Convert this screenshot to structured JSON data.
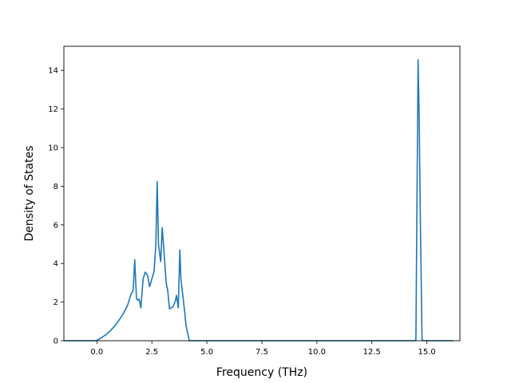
{
  "chart_data": {
    "type": "line",
    "title": "",
    "xlabel": "Frequency (THz)",
    "ylabel": "Density of States",
    "xlim": [
      -1.5,
      16.5
    ],
    "ylim": [
      0,
      15.25
    ],
    "grid": false,
    "legend": "none",
    "x_ticks": [
      0.0,
      2.5,
      5.0,
      7.5,
      10.0,
      12.5,
      15.0
    ],
    "x_tick_labels": [
      "0.0",
      "2.5",
      "5.0",
      "7.5",
      "10.0",
      "12.5",
      "15.0"
    ],
    "y_ticks": [
      0,
      2,
      4,
      6,
      8,
      10,
      12,
      14
    ],
    "y_tick_labels": [
      "0",
      "2",
      "4",
      "6",
      "8",
      "10",
      "12",
      "14"
    ],
    "color": "#1f77b4",
    "series": [
      {
        "x": [
          -1.5,
          -0.1,
          0.0,
          0.2,
          0.4,
          0.6,
          0.8,
          1.0,
          1.2,
          1.4,
          1.55,
          1.65,
          1.72,
          1.8,
          1.85,
          1.92,
          2.0,
          2.1,
          2.2,
          2.3,
          2.4,
          2.5,
          2.6,
          2.68,
          2.74,
          2.8,
          2.9,
          2.97,
          3.05,
          3.15,
          3.22,
          3.3,
          3.45,
          3.55,
          3.62,
          3.7,
          3.77,
          3.82,
          3.9,
          4.0,
          4.05,
          4.2,
          5.0,
          10.0,
          14.45,
          14.5,
          14.6,
          14.65,
          14.7,
          14.78,
          14.85,
          15.0,
          16.2
        ],
        "y": [
          0,
          0,
          0.02,
          0.15,
          0.3,
          0.5,
          0.75,
          1.05,
          1.4,
          1.85,
          2.4,
          2.6,
          4.2,
          2.2,
          2.1,
          2.15,
          1.7,
          3.2,
          3.55,
          3.4,
          2.8,
          3.2,
          3.6,
          5.0,
          8.25,
          5.0,
          4.1,
          5.85,
          4.6,
          3.0,
          2.6,
          1.65,
          1.75,
          2.0,
          2.35,
          1.7,
          4.7,
          3.2,
          2.4,
          1.4,
          0.8,
          0.0,
          0.0,
          0.0,
          0.0,
          0.05,
          14.55,
          11.5,
          6.5,
          0.05,
          0.0,
          0.0,
          0.0
        ]
      }
    ]
  }
}
